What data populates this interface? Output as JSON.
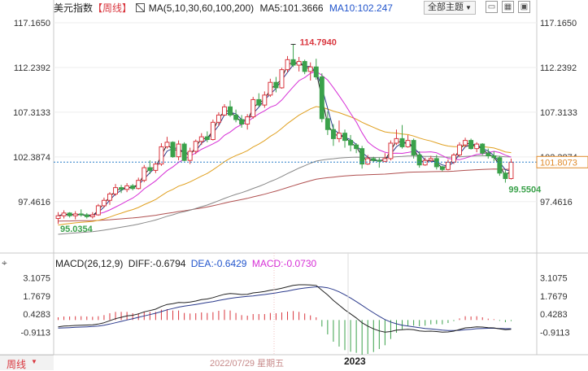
{
  "header": {
    "title": "美元指数",
    "period_tag": "【周线】",
    "ma_label": "MA(5,10,30,60,100,200)",
    "ma5_label": "MA5:101.3666",
    "ma10_label": "MA10:102.247",
    "theme_button": "全部主题",
    "theme_arrow": "▼"
  },
  "macd_header": {
    "label": "MACD(26,12,9)",
    "diff": "DIFF:-0.6794",
    "dea": "DEA:-0.6429",
    "macd": "MACD:-0.0730"
  },
  "footer": {
    "period": "周线",
    "date_label": "2022/07/29 星期五",
    "year_label": "2023"
  },
  "colors": {
    "up": "#d9363e",
    "down": "#3aa14a",
    "ma5": "#222222",
    "ma10": "#2b3a8c",
    "ma30": "#d62fd6",
    "ma60": "#e0a020",
    "ma100": "#888888",
    "ma200": "#b05050",
    "diff": "#222222",
    "dea": "#2b3a8c",
    "macd_label": "#d62fd6",
    "header_blue": "#2255cc",
    "price_line": "#2a7fc9"
  },
  "chart_data": [
    {
      "type": "candlestick",
      "title": "美元指数",
      "yticks": [
        "117.1650",
        "112.2392",
        "107.3133",
        "102.3874",
        "97.4616"
      ],
      "ylim": [
        92.6,
        118.6
      ],
      "current_price": "101.8073",
      "annotations": {
        "high": "114.7940",
        "low_left": "95.0354",
        "low_right": "99.5504"
      },
      "ohlc": [
        [
          95.6,
          96.3,
          95.0,
          95.9
        ],
        [
          95.9,
          96.5,
          95.6,
          96.2
        ],
        [
          96.2,
          96.3,
          95.7,
          95.9
        ],
        [
          95.9,
          96.4,
          95.5,
          96.1
        ],
        [
          96.1,
          96.6,
          95.8,
          96.0
        ],
        [
          96.0,
          96.2,
          95.6,
          95.8
        ],
        [
          95.8,
          96.3,
          95.6,
          96.0
        ],
        [
          96.0,
          97.2,
          95.9,
          97.0
        ],
        [
          97.0,
          97.9,
          96.8,
          97.6
        ],
        [
          97.6,
          98.5,
          97.1,
          98.3
        ],
        [
          98.3,
          99.4,
          98.1,
          99.0
        ],
        [
          99.0,
          99.3,
          98.4,
          98.8
        ],
        [
          98.8,
          99.5,
          98.5,
          99.2
        ],
        [
          99.2,
          99.4,
          98.7,
          98.9
        ],
        [
          98.9,
          100.1,
          98.8,
          99.8
        ],
        [
          99.8,
          101.5,
          99.6,
          101.2
        ],
        [
          101.2,
          102.0,
          100.5,
          100.9
        ],
        [
          100.9,
          101.9,
          100.6,
          101.6
        ],
        [
          101.6,
          103.9,
          101.4,
          103.5
        ],
        [
          103.5,
          104.6,
          103.3,
          104.0
        ],
        [
          104.0,
          104.1,
          102.3,
          102.4
        ],
        [
          102.4,
          104.2,
          102.0,
          103.8
        ],
        [
          103.8,
          104.0,
          101.9,
          102.0
        ],
        [
          102.0,
          103.4,
          101.6,
          103.0
        ],
        [
          103.0,
          104.3,
          102.7,
          104.1
        ],
        [
          104.1,
          105.0,
          103.7,
          104.6
        ],
        [
          104.6,
          105.2,
          104.0,
          104.3
        ],
        [
          104.3,
          106.5,
          104.2,
          106.2
        ],
        [
          106.2,
          107.3,
          105.8,
          107.0
        ],
        [
          107.0,
          108.2,
          106.9,
          107.9
        ],
        [
          107.9,
          108.6,
          106.8,
          107.0
        ],
        [
          107.0,
          107.6,
          106.2,
          106.5
        ],
        [
          106.5,
          107.0,
          105.6,
          106.0
        ],
        [
          106.0,
          107.1,
          105.4,
          106.8
        ],
        [
          106.8,
          109.0,
          106.6,
          108.7
        ],
        [
          108.7,
          109.4,
          107.9,
          108.1
        ],
        [
          108.1,
          109.6,
          107.8,
          109.2
        ],
        [
          109.2,
          111.0,
          109.0,
          110.6
        ],
        [
          110.6,
          111.2,
          109.5,
          110.0
        ],
        [
          110.0,
          112.2,
          109.9,
          112.0
        ],
        [
          112.0,
          113.5,
          111.7,
          113.1
        ],
        [
          113.1,
          114.79,
          112.3,
          112.5
        ],
        [
          112.5,
          113.4,
          111.8,
          112.9
        ],
        [
          112.9,
          113.1,
          111.5,
          111.8
        ],
        [
          111.8,
          112.8,
          110.8,
          112.3
        ],
        [
          112.3,
          113.2,
          110.9,
          111.2
        ],
        [
          111.2,
          111.6,
          106.2,
          106.6
        ],
        [
          106.6,
          107.4,
          104.8,
          105.4
        ],
        [
          105.4,
          106.0,
          103.6,
          104.4
        ],
        [
          104.4,
          106.4,
          104.0,
          105.0
        ],
        [
          105.0,
          105.4,
          103.4,
          104.2
        ],
        [
          104.2,
          104.8,
          103.0,
          103.7
        ],
        [
          103.7,
          103.9,
          102.8,
          103.3
        ],
        [
          103.3,
          103.6,
          101.1,
          101.6
        ],
        [
          101.6,
          102.6,
          101.5,
          102.2
        ],
        [
          102.2,
          102.4,
          101.8,
          102.0
        ],
        [
          102.0,
          102.3,
          101.2,
          101.9
        ],
        [
          101.9,
          102.8,
          101.8,
          102.2
        ],
        [
          102.2,
          104.2,
          102.0,
          103.9
        ],
        [
          103.9,
          105.4,
          103.7,
          104.4
        ],
        [
          104.4,
          105.9,
          103.3,
          103.5
        ],
        [
          103.5,
          104.8,
          103.4,
          104.2
        ],
        [
          104.2,
          104.4,
          102.2,
          102.6
        ],
        [
          102.6,
          103.0,
          101.2,
          101.5
        ],
        [
          101.5,
          102.3,
          101.4,
          102.0
        ],
        [
          102.0,
          102.5,
          101.8,
          102.2
        ],
        [
          102.2,
          102.6,
          101.0,
          101.3
        ],
        [
          101.3,
          101.4,
          100.8,
          101.0
        ],
        [
          101.0,
          102.1,
          100.9,
          101.8
        ],
        [
          101.8,
          102.8,
          101.6,
          102.6
        ],
        [
          102.6,
          104.0,
          102.4,
          103.7
        ],
        [
          103.7,
          104.5,
          103.5,
          104.2
        ],
        [
          104.2,
          104.4,
          103.2,
          103.3
        ],
        [
          103.3,
          104.0,
          102.9,
          103.8
        ],
        [
          103.8,
          103.9,
          102.6,
          102.8
        ],
        [
          102.8,
          103.3,
          102.2,
          102.5
        ],
        [
          102.5,
          103.0,
          101.9,
          102.3
        ],
        [
          102.3,
          102.5,
          100.3,
          100.6
        ],
        [
          100.6,
          100.9,
          99.55,
          100.0
        ],
        [
          100.0,
          102.2,
          99.9,
          101.8
        ]
      ]
    },
    {
      "type": "macd",
      "yticks": [
        "3.1075",
        "1.7679",
        "0.4283",
        "-0.9113"
      ],
      "ylim": [
        -2.2,
        3.8
      ],
      "diff": [
        -0.5,
        -0.45,
        -0.43,
        -0.4,
        -0.38,
        -0.37,
        -0.36,
        -0.3,
        -0.2,
        -0.05,
        0.1,
        0.2,
        0.3,
        0.35,
        0.45,
        0.6,
        0.7,
        0.8,
        1.0,
        1.15,
        1.2,
        1.3,
        1.28,
        1.32,
        1.4,
        1.5,
        1.55,
        1.65,
        1.78,
        1.9,
        1.95,
        1.92,
        1.88,
        1.9,
        2.0,
        2.05,
        2.1,
        2.2,
        2.25,
        2.35,
        2.45,
        2.55,
        2.6,
        2.6,
        2.58,
        2.55,
        2.2,
        1.85,
        1.45,
        1.1,
        0.75,
        0.45,
        0.15,
        -0.2,
        -0.45,
        -0.65,
        -0.8,
        -0.9,
        -0.85,
        -0.75,
        -0.72,
        -0.68,
        -0.72,
        -0.8,
        -0.83,
        -0.82,
        -0.85,
        -0.9,
        -0.88,
        -0.82,
        -0.7,
        -0.58,
        -0.55,
        -0.5,
        -0.52,
        -0.56,
        -0.58,
        -0.65,
        -0.72,
        -0.68
      ],
      "dea": [
        -0.6,
        -0.58,
        -0.56,
        -0.54,
        -0.52,
        -0.5,
        -0.48,
        -0.44,
        -0.38,
        -0.3,
        -0.2,
        -0.1,
        0.0,
        0.1,
        0.2,
        0.3,
        0.4,
        0.5,
        0.62,
        0.75,
        0.85,
        0.95,
        1.02,
        1.08,
        1.15,
        1.22,
        1.29,
        1.36,
        1.44,
        1.52,
        1.6,
        1.66,
        1.7,
        1.74,
        1.78,
        1.83,
        1.88,
        1.94,
        2.0,
        2.07,
        2.14,
        2.22,
        2.3,
        2.36,
        2.41,
        2.45,
        2.44,
        2.38,
        2.25,
        2.08,
        1.86,
        1.62,
        1.36,
        1.08,
        0.8,
        0.53,
        0.27,
        0.03,
        -0.15,
        -0.28,
        -0.38,
        -0.45,
        -0.51,
        -0.57,
        -0.62,
        -0.66,
        -0.7,
        -0.74,
        -0.77,
        -0.78,
        -0.76,
        -0.72,
        -0.68,
        -0.64,
        -0.62,
        -0.61,
        -0.61,
        -0.62,
        -0.64,
        -0.64
      ]
    }
  ]
}
